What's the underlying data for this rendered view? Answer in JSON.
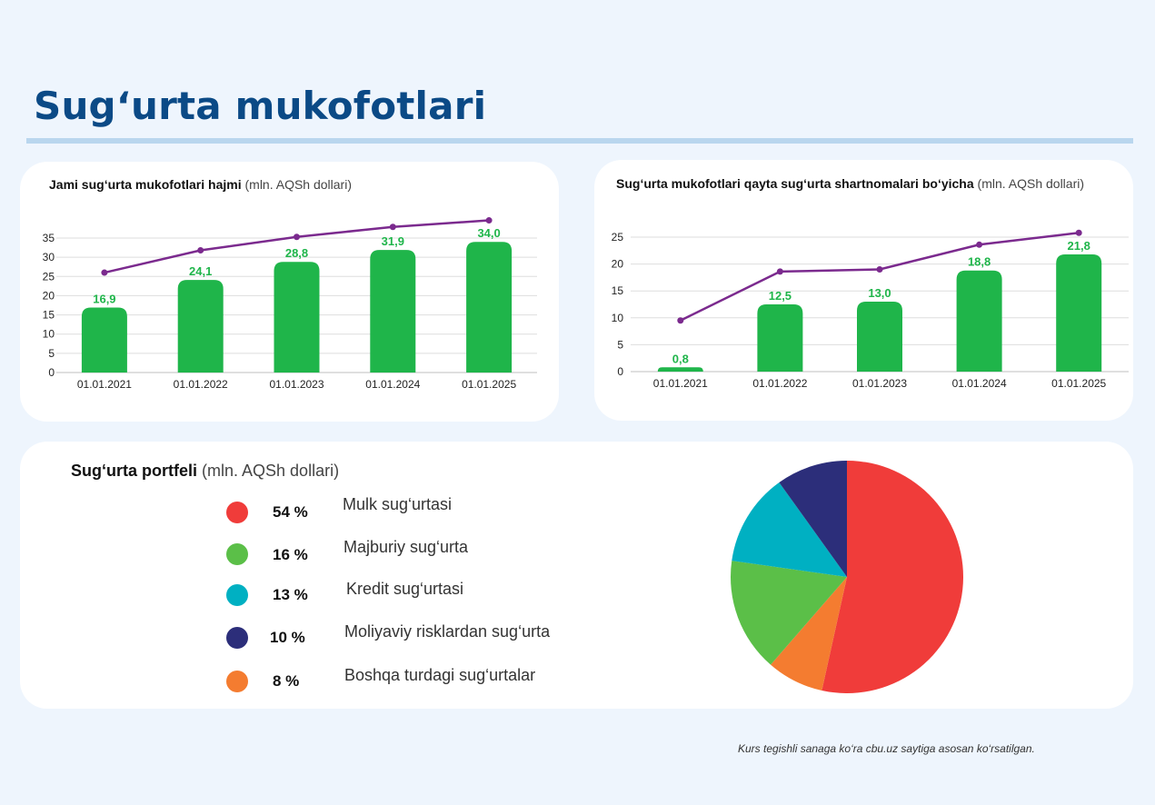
{
  "page": {
    "title": "Sug‘urta mukofotlari",
    "footnote": "Kurs tegishli sanaga ko‘ra cbu.uz saytiga asosan ko‘rsatilgan."
  },
  "colors": {
    "bar": "#1fb54a",
    "line": "#7b2a8e",
    "label": "#1fb54a",
    "title": "#0b4a86"
  },
  "charts": {
    "left": {
      "title_bold": "Jami sug‘urta mukofotlari hajmi",
      "title_unit": "(mln. AQSh dollari)"
    },
    "right": {
      "title_bold": "Sug‘urta mukofotlari qayta sug‘urta shartnomalari bo‘yicha",
      "title_unit": "(mln. AQSh dollari)"
    }
  },
  "chart_data": [
    {
      "type": "bar",
      "title": "Jami sug‘urta mukofotlari hajmi (mln. AQSh dollari)",
      "categories": [
        "01.01.2021",
        "01.01.2022",
        "01.01.2023",
        "01.01.2024",
        "01.01.2025"
      ],
      "values": [
        16.9,
        24.1,
        28.8,
        31.9,
        34.0
      ],
      "labels": [
        "16,9",
        "24,1",
        "28,8",
        "31,9",
        "34,0"
      ],
      "yticks": [
        0,
        5,
        10,
        15,
        20,
        25,
        30,
        35
      ],
      "ylim": [
        0,
        35
      ],
      "line_overlay": {
        "values": [
          26.0,
          31.8,
          35.3,
          37.9,
          39.6
        ]
      }
    },
    {
      "type": "bar",
      "title": "Sug‘urta mukofotlari qayta sug‘urta shartnomalari bo‘yicha (mln. AQSh dollari)",
      "categories": [
        "01.01.2021",
        "01.01.2022",
        "01.01.2023",
        "01.01.2024",
        "01.01.2025"
      ],
      "values": [
        0.8,
        12.5,
        13.0,
        18.8,
        21.8
      ],
      "labels": [
        "0,8",
        "12,5",
        "13,0",
        "18,8",
        "21,8"
      ],
      "yticks": [
        0,
        5,
        10,
        15,
        20,
        25
      ],
      "ylim": [
        0,
        25
      ],
      "line_overlay": {
        "values": [
          9.5,
          18.6,
          19.0,
          23.6,
          25.8
        ]
      }
    },
    {
      "type": "pie",
      "title": "Sug‘urta portfeli (mln. AQSh dollari)",
      "slices": [
        {
          "label": "Mulk sug‘urtasi",
          "pct_label": "54 %",
          "value": 54,
          "color": "#f03c3a"
        },
        {
          "label": "Boshqa turdagi sug‘urtalar",
          "pct_label": "8 %",
          "value": 8,
          "color": "#f47c30"
        },
        {
          "label": "Majburiy sug‘urta",
          "pct_label": "16 %",
          "value": 16,
          "color": "#5bbf48"
        },
        {
          "label": "Kredit sug‘urtasi",
          "pct_label": "13 %",
          "value": 13,
          "color": "#00b0c2"
        },
        {
          "label": "Moliyaviy risklardan sug‘urta",
          "pct_label": "10 %",
          "value": 10,
          "color": "#2c2e7a"
        }
      ]
    }
  ],
  "portfolio": {
    "title_bold": "Sug‘urta portfeli",
    "title_unit": "(mln. AQSh dollari)",
    "legend": [
      {
        "pct": "54 %",
        "label": "Mulk sug‘urtasi",
        "color": "#f03c3a"
      },
      {
        "pct": "16 %",
        "label": "Majburiy sug‘urta",
        "color": "#5bbf48"
      },
      {
        "pct": "13 %",
        "label": "Kredit sug‘urtasi",
        "color": "#00b0c2"
      },
      {
        "pct": "10 %",
        "label": "Moliyaviy risklardan sug‘urta",
        "color": "#2c2e7a"
      },
      {
        "pct": "8 %",
        "label": "Boshqa turdagi sug‘urtalar",
        "color": "#f47c30"
      }
    ]
  }
}
